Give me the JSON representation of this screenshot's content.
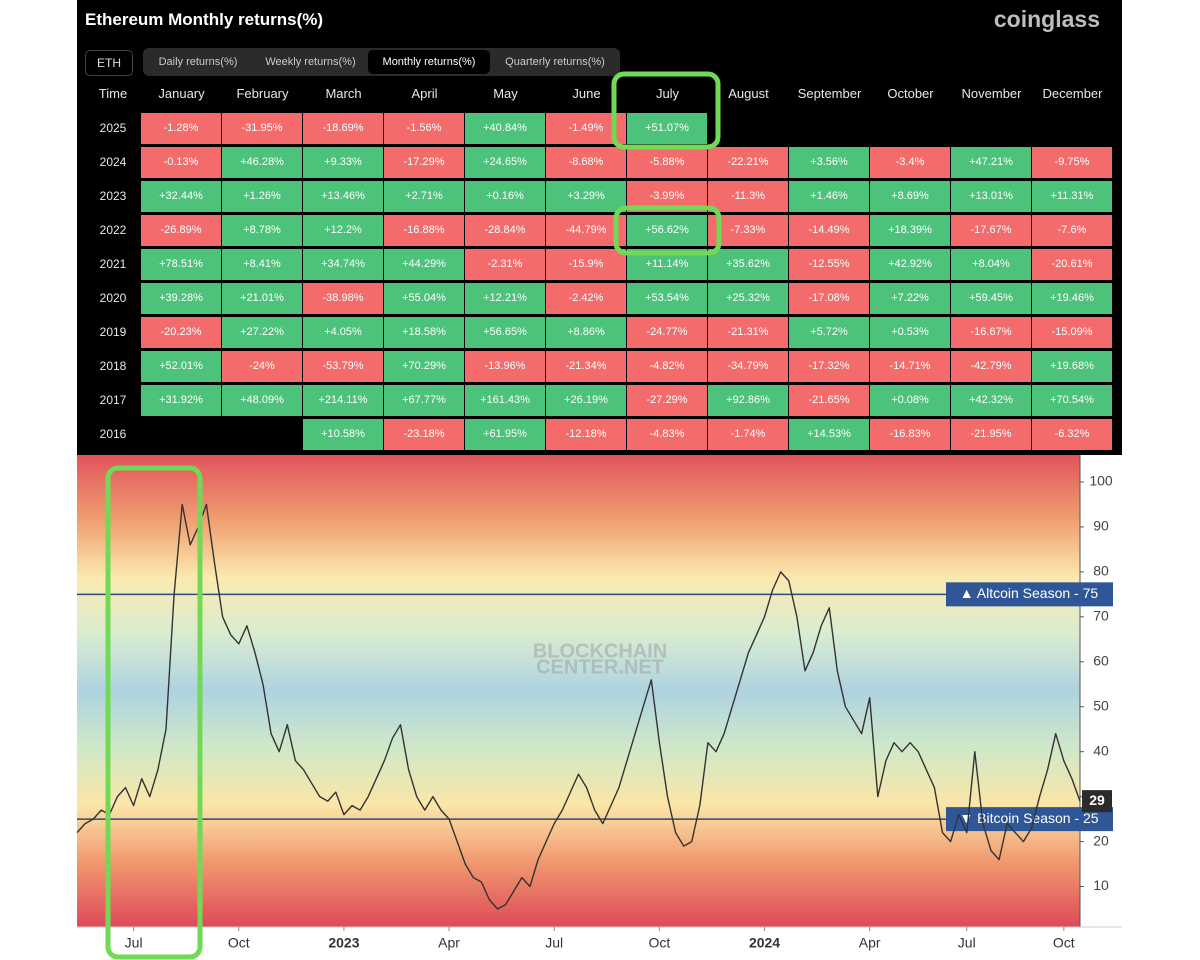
{
  "header": {
    "title": "Ethereum Monthly returns(%)",
    "logo": "coinglass",
    "asset": "ETH",
    "tabs": [
      "Daily returns(%)",
      "Weekly returns(%)",
      "Monthly returns(%)",
      "Quarterly returns(%)"
    ],
    "active_tab": 2
  },
  "table": {
    "columns": [
      "Time",
      "January",
      "February",
      "March",
      "April",
      "May",
      "June",
      "July",
      "August",
      "September",
      "October",
      "November",
      "December"
    ],
    "rows": [
      [
        "2025",
        "-1.28%",
        "-31.95%",
        "-18.69%",
        "-1.56%",
        "+40.84%",
        "-1.49%",
        "+51.07%"
      ],
      [
        "2024",
        "-0.13%",
        "+46.28%",
        "+9.33%",
        "-17.29%",
        "+24.65%",
        "-8.68%",
        "-5.88%",
        "-22.21%",
        "+3.56%",
        "-3.4%",
        "+47.21%",
        "-9.75%"
      ],
      [
        "2023",
        "+32.44%",
        "+1.26%",
        "+13.46%",
        "+2.71%",
        "+0.16%",
        "+3.29%",
        "-3.99%",
        "-11.3%",
        "+1.46%",
        "+8.69%",
        "+13.01%",
        "+11.31%"
      ],
      [
        "2022",
        "-26.89%",
        "+8.78%",
        "+12.2%",
        "-16.88%",
        "-28.84%",
        "-44.79%",
        "+56.62%",
        "-7.33%",
        "-14.49%",
        "+18.39%",
        "-17.67%",
        "-7.6%"
      ],
      [
        "2021",
        "+78.51%",
        "+8.41%",
        "+34.74%",
        "+44.29%",
        "-2.31%",
        "-15.9%",
        "+11.14%",
        "+35.62%",
        "-12.55%",
        "+42.92%",
        "+8.04%",
        "-20.61%"
      ],
      [
        "2020",
        "+39.28%",
        "+21.01%",
        "-38.98%",
        "+55.04%",
        "+12.21%",
        "-2.42%",
        "+53.54%",
        "+25.32%",
        "-17.08%",
        "+7.22%",
        "+59.45%",
        "+19.46%"
      ],
      [
        "2019",
        "-20.23%",
        "+27.22%",
        "+4.05%",
        "+18.58%",
        "+56.65%",
        "+8.86%",
        "-24.77%",
        "-21.31%",
        "+5.72%",
        "+0.53%",
        "-16.67%",
        "-15.09%"
      ],
      [
        "2018",
        "+52.01%",
        "-24%",
        "-53.79%",
        "+70.29%",
        "-13.96%",
        "-21.34%",
        "-4.82%",
        "-34.79%",
        "-17.32%",
        "-14.71%",
        "-42.79%",
        "+19.68%"
      ],
      [
        "2017",
        "+31.92%",
        "+48.09%",
        "+214.11%",
        "+67.77%",
        "+161.43%",
        "+26.19%",
        "-27.29%",
        "+92.86%",
        "-21.65%",
        "+0.08%",
        "+42.32%",
        "+70.54%"
      ],
      [
        "2016",
        null,
        null,
        "+10.58%",
        "-23.18%",
        "+61.95%",
        "-12.18%",
        "-4.83%",
        "-1.74%",
        "+14.53%",
        "-16.83%",
        "-21.95%",
        "-6.32%"
      ]
    ]
  },
  "chart_data": {
    "type": "line",
    "watermark": [
      "BLOCKCHAIN",
      "CENTER.NET"
    ],
    "series": [
      {
        "color": "#333333",
        "values": [
          22,
          24,
          25,
          27,
          26,
          30,
          32,
          28,
          34,
          30,
          36,
          45,
          75,
          95,
          86,
          90,
          95,
          82,
          70,
          66,
          64,
          68,
          62,
          55,
          44,
          40,
          46,
          38,
          36,
          33,
          30,
          29,
          31,
          26,
          28,
          27,
          30,
          34,
          38,
          43,
          46,
          36,
          30,
          27,
          30,
          27,
          25,
          20,
          15,
          12,
          11,
          7,
          5,
          6,
          9,
          12,
          10,
          16,
          20,
          24,
          27,
          31,
          35,
          32,
          27,
          24,
          28,
          32,
          38,
          44,
          50,
          56,
          42,
          30,
          22,
          19,
          20,
          28,
          42,
          40,
          44,
          50,
          56,
          62,
          66,
          70,
          76,
          80,
          78,
          70,
          58,
          62,
          68,
          72,
          58,
          50,
          47,
          44,
          52,
          30,
          38,
          42,
          40,
          42,
          40,
          36,
          32,
          22,
          20,
          26,
          22,
          40,
          24,
          18,
          16,
          24,
          22,
          20,
          23,
          30,
          36,
          44,
          38,
          34,
          29
        ]
      }
    ],
    "xlim": [
      0,
      124
    ],
    "xticks": [
      {
        "value": 7,
        "label": "Jul"
      },
      {
        "value": 20,
        "label": "Oct"
      },
      {
        "value": 33,
        "label": "2023"
      },
      {
        "value": 46,
        "label": "Apr"
      },
      {
        "value": 59,
        "label": "Jul"
      },
      {
        "value": 72,
        "label": "Oct"
      },
      {
        "value": 85,
        "label": "2024"
      },
      {
        "value": 98,
        "label": "Apr"
      },
      {
        "value": 110,
        "label": "Jul"
      },
      {
        "value": 122,
        "label": "Oct"
      }
    ],
    "ylim": [
      1,
      106
    ],
    "yticks": [
      10,
      20,
      30,
      40,
      50,
      60,
      70,
      80,
      90,
      100
    ],
    "annotations": [
      {
        "value": 75,
        "label": "▲ Altcoin Season - 75",
        "color": "#2f5797"
      },
      {
        "value": 25,
        "label": "▼ Bitcoin Season - 25",
        "color": "#2f5797"
      }
    ]
  }
}
